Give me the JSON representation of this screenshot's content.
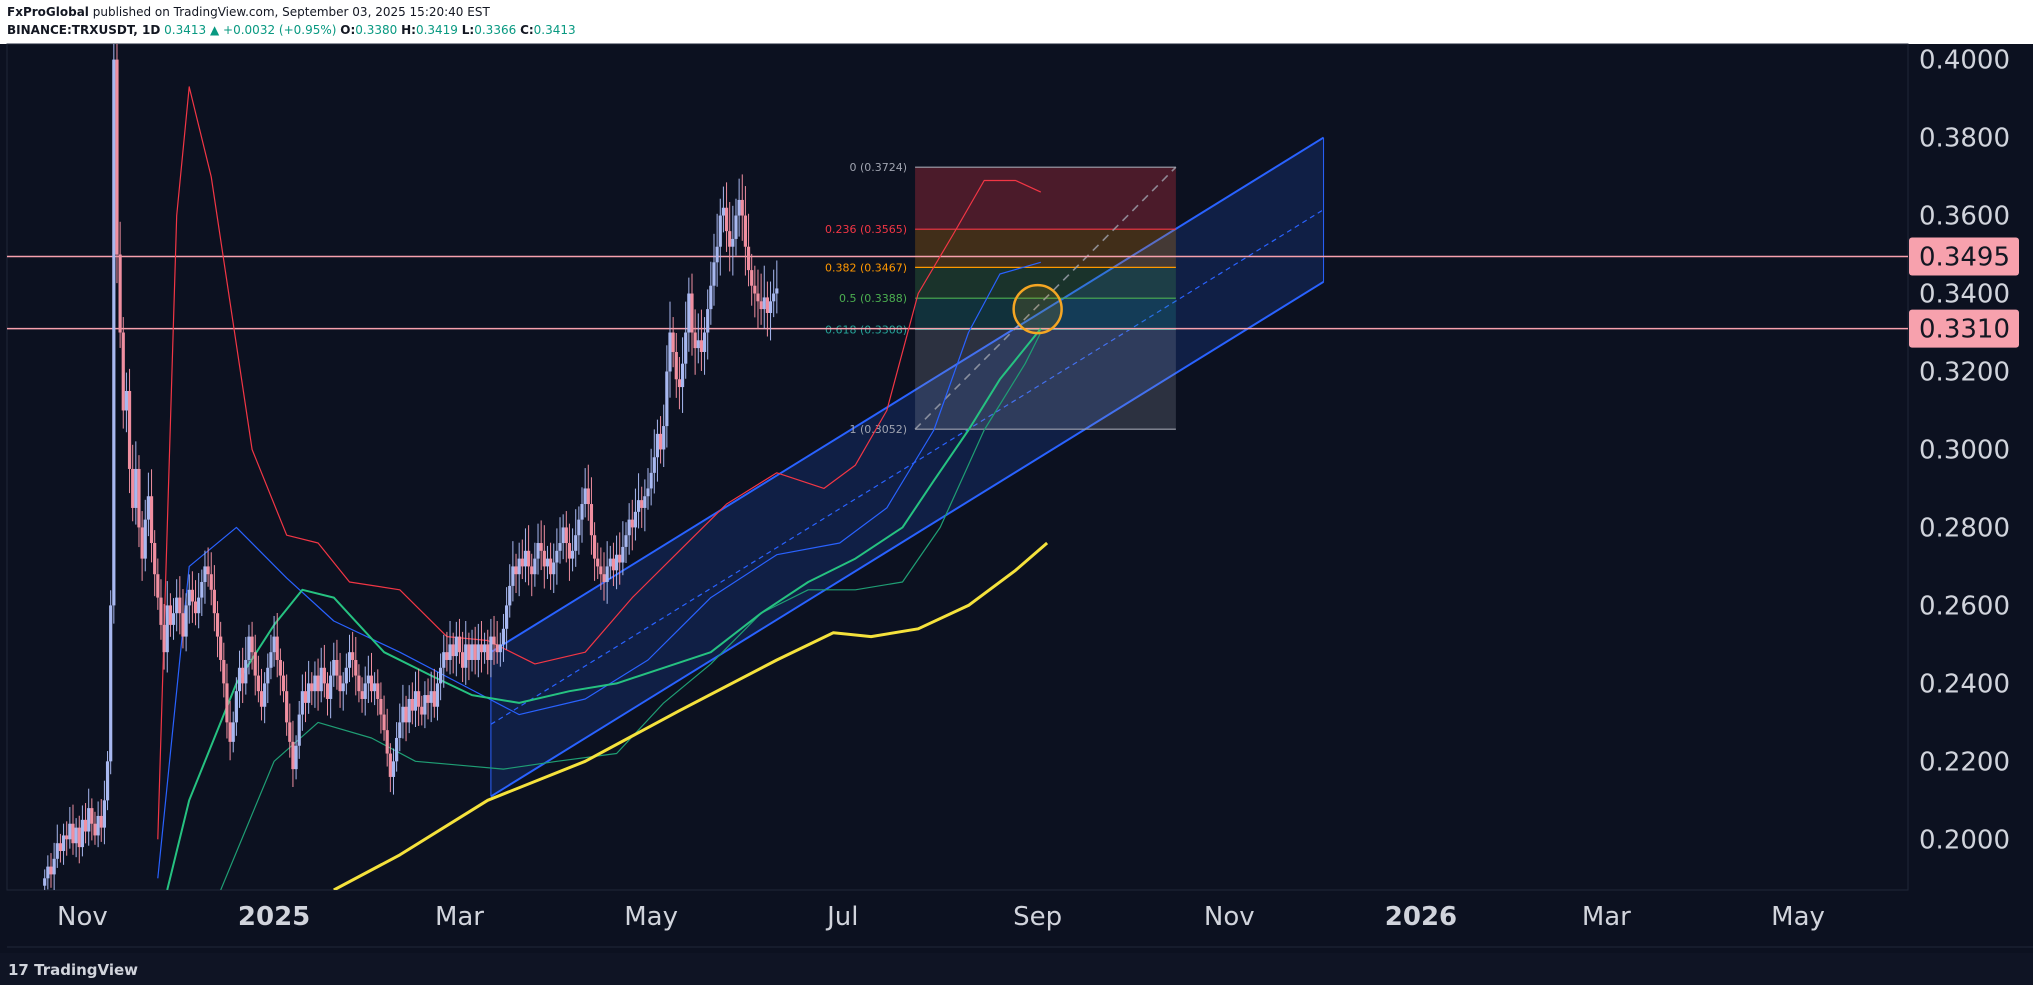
{
  "header": {
    "publisher": "FxProGlobal",
    "published_text": "published on TradingView.com, September 03, 2025 15:20:40 EST",
    "symbol": "BINANCE:TRXUSDT, 1D",
    "last": "0.3413",
    "change": "▲ +0.0032 (+0.95%)",
    "o_label": "O:",
    "o": "0.3380",
    "h_label": "H:",
    "h": "0.3419",
    "l_label": "L:",
    "l": "0.3366",
    "c_label": "C:",
    "c": "0.3413"
  },
  "footer": {
    "logo_text": "TradingView"
  },
  "colors": {
    "background": "#0c1120",
    "candle_up": "#a8b8f0",
    "candle_down": "#f08fa0",
    "channel": "#2962ff",
    "horizontal_levels": "#f7a1ad",
    "sma_yellow": "#f5e23c",
    "ema_green": "#26c281",
    "bollinger_red": "#f23645"
  },
  "chart_data": {
    "type": "candlestick",
    "y_axis": {
      "ticks": [
        "0.4000",
        "0.3800",
        "0.3600",
        "0.3400",
        "0.3200",
        "0.3000",
        "0.2800",
        "0.2600",
        "0.2400",
        "0.2200",
        "0.2000"
      ],
      "ylim": [
        0.187,
        0.404
      ]
    },
    "x_axis": {
      "ticks": [
        "Nov",
        "2025",
        "Mar",
        "May",
        "Jul",
        "Sep",
        "Nov",
        "2026",
        "Mar",
        "May"
      ],
      "tick_dates": [
        "2024-11-01",
        "2025-01-01",
        "2025-03-01",
        "2025-05-01",
        "2025-07-01",
        "2025-09-01",
        "2025-11-01",
        "2026-01-01",
        "2026-03-01",
        "2026-05-01"
      ],
      "xlim": [
        "2024-10-08",
        "2026-06-05"
      ]
    },
    "horizontal_levels": [
      {
        "value": 0.3495,
        "label": "0.3495"
      },
      {
        "value": 0.331,
        "label": "0.3310"
      }
    ],
    "fibonacci": {
      "start_date": "2025-07-24",
      "end_date": "2025-10-15",
      "levels": [
        {
          "ratio": "0",
          "value": 0.3724,
          "label": "0 (0.3724)",
          "color": "#a0a4b0"
        },
        {
          "ratio": "0.236",
          "value": 0.3565,
          "label": "0.236 (0.3565)",
          "color": "#f23645"
        },
        {
          "ratio": "0.382",
          "value": 0.3467,
          "label": "0.382 (0.3467)",
          "color": "#ff9800"
        },
        {
          "ratio": "0.5",
          "value": 0.3388,
          "label": "0.5 (0.3388)",
          "color": "#4caf50"
        },
        {
          "ratio": "0.618",
          "value": 0.3308,
          "label": "0.618 (0.3308)",
          "color": "#26a69a"
        },
        {
          "ratio": "1",
          "value": 0.3052,
          "label": "1 (0.3052)",
          "color": "#a0a4b0"
        }
      ]
    },
    "channel": {
      "start_date": "2025-03-11",
      "end_date": "2025-12-01",
      "upper": [
        0.248,
        0.38
      ],
      "lower": [
        0.211,
        0.343
      ]
    },
    "highlight_circle": {
      "date": "2025-09-01",
      "value": 0.336
    },
    "candles": {
      "start_date": "2024-10-20",
      "interval_days": 1,
      "close": [
        0.19,
        0.193,
        0.191,
        0.195,
        0.199,
        0.197,
        0.201,
        0.2,
        0.204,
        0.199,
        0.203,
        0.198,
        0.205,
        0.202,
        0.208,
        0.204,
        0.201,
        0.206,
        0.203,
        0.21,
        0.22,
        0.26,
        0.4,
        0.35,
        0.33,
        0.31,
        0.315,
        0.295,
        0.285,
        0.295,
        0.28,
        0.272,
        0.282,
        0.288,
        0.276,
        0.268,
        0.262,
        0.255,
        0.248,
        0.26,
        0.255,
        0.258,
        0.262,
        0.258,
        0.252,
        0.26,
        0.264,
        0.261,
        0.258,
        0.262,
        0.266,
        0.27,
        0.268,
        0.264,
        0.258,
        0.252,
        0.246,
        0.24,
        0.23,
        0.225,
        0.23,
        0.238,
        0.244,
        0.24,
        0.246,
        0.252,
        0.248,
        0.242,
        0.238,
        0.234,
        0.24,
        0.244,
        0.248,
        0.252,
        0.246,
        0.242,
        0.238,
        0.23,
        0.225,
        0.218,
        0.224,
        0.232,
        0.238,
        0.235,
        0.24,
        0.238,
        0.242,
        0.238,
        0.244,
        0.24,
        0.236,
        0.242,
        0.246,
        0.242,
        0.238,
        0.24,
        0.244,
        0.248,
        0.246,
        0.242,
        0.238,
        0.236,
        0.24,
        0.242,
        0.238,
        0.24,
        0.236,
        0.232,
        0.228,
        0.222,
        0.216,
        0.22,
        0.226,
        0.23,
        0.234,
        0.23,
        0.236,
        0.233,
        0.238,
        0.234,
        0.232,
        0.237,
        0.235,
        0.238,
        0.234,
        0.24,
        0.244,
        0.248,
        0.246,
        0.25,
        0.247,
        0.252,
        0.248,
        0.244,
        0.25,
        0.246,
        0.25,
        0.246,
        0.25,
        0.248,
        0.25,
        0.246,
        0.252,
        0.25,
        0.248,
        0.25,
        0.254,
        0.26,
        0.265,
        0.27,
        0.268,
        0.272,
        0.27,
        0.274,
        0.27,
        0.268,
        0.272,
        0.276,
        0.274,
        0.27,
        0.272,
        0.268,
        0.271,
        0.274,
        0.276,
        0.28,
        0.276,
        0.272,
        0.274,
        0.278,
        0.282,
        0.286,
        0.29,
        0.286,
        0.278,
        0.272,
        0.27,
        0.268,
        0.266,
        0.27,
        0.272,
        0.269,
        0.273,
        0.271,
        0.275,
        0.278,
        0.282,
        0.28,
        0.284,
        0.287,
        0.285,
        0.288,
        0.29,
        0.294,
        0.298,
        0.304,
        0.3,
        0.306,
        0.32,
        0.33,
        0.325,
        0.318,
        0.316,
        0.322,
        0.33,
        0.34,
        0.33,
        0.326,
        0.328,
        0.325,
        0.33,
        0.336,
        0.342,
        0.348,
        0.352,
        0.36,
        0.362,
        0.356,
        0.352,
        0.354,
        0.36,
        0.364,
        0.36,
        0.352,
        0.346,
        0.342,
        0.34,
        0.338,
        0.336,
        0.339,
        0.335,
        0.338,
        0.34,
        0.3413
      ]
    },
    "sma_yellow": {
      "dates": [
        "2025-01-20",
        "2025-02-10",
        "2025-03-10",
        "2025-04-10",
        "2025-05-10",
        "2025-06-10",
        "2025-06-28",
        "2025-07-10",
        "2025-07-25",
        "2025-08-10",
        "2025-08-25",
        "2025-09-04"
      ],
      "values": [
        0.187,
        0.196,
        0.21,
        0.22,
        0.233,
        0.246,
        0.253,
        0.252,
        0.254,
        0.26,
        0.269,
        0.276
      ]
    },
    "ema_green": {
      "dates": [
        "2024-11-28",
        "2024-12-05",
        "2024-12-20",
        "2025-01-01",
        "2025-01-10",
        "2025-01-20",
        "2025-02-05",
        "2025-02-20",
        "2025-03-05",
        "2025-03-20",
        "2025-04-05",
        "2025-04-20",
        "2025-05-05",
        "2025-05-20",
        "2025-06-05",
        "2025-06-20",
        "2025-07-05",
        "2025-07-20",
        "2025-07-30",
        "2025-08-10",
        "2025-08-20",
        "2025-09-02"
      ],
      "values": [
        0.187,
        0.21,
        0.24,
        0.255,
        0.264,
        0.262,
        0.248,
        0.242,
        0.237,
        0.235,
        0.238,
        0.24,
        0.244,
        0.248,
        0.258,
        0.266,
        0.272,
        0.28,
        0.292,
        0.305,
        0.318,
        0.331
      ]
    },
    "bollinger_upper": {
      "dates": [
        "2024-11-25",
        "2024-12-01",
        "2024-12-05",
        "2024-12-12",
        "2024-12-25",
        "2025-01-05",
        "2025-01-15",
        "2025-01-25",
        "2025-02-10",
        "2025-02-25",
        "2025-03-10",
        "2025-03-25",
        "2025-04-10",
        "2025-04-25",
        "2025-05-10",
        "2025-05-25",
        "2025-06-10",
        "2025-06-25",
        "2025-07-05",
        "2025-07-15",
        "2025-07-25",
        "2025-08-05",
        "2025-08-15",
        "2025-08-25",
        "2025-09-02"
      ],
      "values": [
        0.2,
        0.36,
        0.393,
        0.37,
        0.3,
        0.278,
        0.276,
        0.266,
        0.264,
        0.252,
        0.251,
        0.245,
        0.248,
        0.262,
        0.274,
        0.286,
        0.294,
        0.29,
        0.296,
        0.31,
        0.34,
        0.355,
        0.369,
        0.369,
        0.366
      ]
    },
    "bollinger_lower": {
      "dates": [
        "2024-12-15",
        "2025-01-01",
        "2025-01-15",
        "2025-02-01",
        "2025-02-15",
        "2025-03-01",
        "2025-03-15",
        "2025-04-01",
        "2025-04-20",
        "2025-05-05",
        "2025-05-20",
        "2025-06-05",
        "2025-06-20",
        "2025-07-05",
        "2025-07-20",
        "2025-08-01",
        "2025-08-15",
        "2025-08-28",
        "2025-09-02"
      ],
      "values": [
        0.187,
        0.22,
        0.23,
        0.226,
        0.22,
        0.219,
        0.218,
        0.22,
        0.222,
        0.235,
        0.245,
        0.258,
        0.264,
        0.264,
        0.266,
        0.28,
        0.305,
        0.322,
        0.33
      ]
    },
    "basis_blue": {
      "dates": [
        "2024-11-25",
        "2024-12-05",
        "2024-12-20",
        "2025-01-05",
        "2025-01-20",
        "2025-02-10",
        "2025-03-01",
        "2025-03-20",
        "2025-04-10",
        "2025-04-30",
        "2025-05-20",
        "2025-06-10",
        "2025-06-30",
        "2025-07-15",
        "2025-07-30",
        "2025-08-10",
        "2025-08-20",
        "2025-09-02"
      ],
      "values": [
        0.19,
        0.27,
        0.28,
        0.267,
        0.256,
        0.248,
        0.24,
        0.232,
        0.236,
        0.246,
        0.262,
        0.273,
        0.276,
        0.285,
        0.305,
        0.33,
        0.345,
        0.348
      ]
    }
  }
}
